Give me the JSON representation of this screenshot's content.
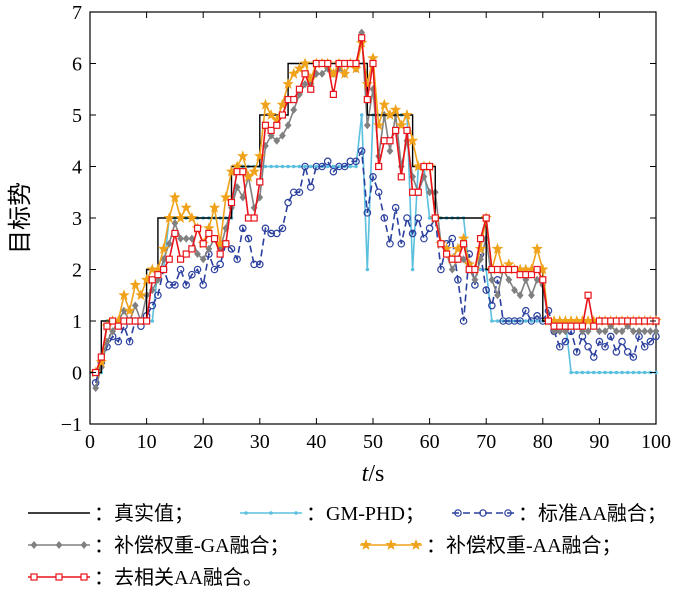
{
  "chart_data": {
    "type": "line",
    "title": "",
    "xlabel_italic": "t",
    "xlabel_unit": "/s",
    "ylabel": "目标势",
    "xlim": [
      0,
      100
    ],
    "ylim": [
      -1,
      7
    ],
    "xticks": [
      0,
      10,
      20,
      30,
      40,
      50,
      60,
      70,
      80,
      90,
      100
    ],
    "yticks": [
      -1,
      0,
      1,
      2,
      3,
      4,
      5,
      6,
      7
    ],
    "grid": false,
    "legend_placement": "bottom",
    "x": [
      1,
      2,
      3,
      4,
      5,
      6,
      7,
      8,
      9,
      10,
      11,
      12,
      13,
      14,
      15,
      16,
      17,
      18,
      19,
      20,
      21,
      22,
      23,
      24,
      25,
      26,
      27,
      28,
      29,
      30,
      31,
      32,
      33,
      34,
      35,
      36,
      37,
      38,
      39,
      40,
      41,
      42,
      43,
      44,
      45,
      46,
      47,
      48,
      49,
      50,
      51,
      52,
      53,
      54,
      55,
      56,
      57,
      58,
      59,
      60,
      61,
      62,
      63,
      64,
      65,
      66,
      67,
      68,
      69,
      70,
      71,
      72,
      73,
      74,
      75,
      76,
      77,
      78,
      79,
      80,
      81,
      82,
      83,
      84,
      85,
      86,
      87,
      88,
      89,
      90,
      91,
      92,
      93,
      94,
      95,
      96,
      97,
      98,
      99,
      100
    ],
    "series": [
      {
        "name": "：真实值；",
        "color": "#000000",
        "marker": "none",
        "dash": "none",
        "values": [
          0,
          0,
          1,
          1,
          1,
          1,
          1,
          1,
          1,
          1,
          2,
          2,
          3,
          3,
          3,
          3,
          3,
          3,
          3,
          3,
          3,
          3,
          3,
          3,
          3,
          4,
          4,
          4,
          4,
          4,
          5,
          5,
          5,
          5,
          5,
          6,
          6,
          6,
          6,
          6,
          6,
          6,
          6,
          6,
          6,
          6,
          6,
          6,
          6,
          5,
          5,
          5,
          5,
          5,
          5,
          5,
          5,
          4,
          4,
          4,
          4,
          3,
          3,
          3,
          3,
          3,
          3,
          3,
          3,
          3,
          2,
          2,
          2,
          2,
          2,
          2,
          2,
          2,
          2,
          2,
          1,
          1,
          1,
          1,
          1,
          1,
          1,
          1,
          1,
          1,
          1,
          1,
          1,
          1,
          1,
          1,
          1,
          1,
          1,
          1
        ]
      },
      {
        "name": "：GM-PHD；",
        "color": "#5bc0de",
        "marker": "dot",
        "dash": "none",
        "values": [
          0,
          0,
          1,
          1,
          1,
          1,
          1,
          1,
          1,
          1,
          1,
          2,
          2,
          3,
          3,
          3,
          3,
          3,
          3,
          3,
          3,
          3,
          3,
          3,
          3,
          4,
          4,
          4,
          4,
          4,
          4,
          4,
          4,
          4,
          4,
          4,
          4,
          4,
          4,
          4,
          4,
          4,
          4,
          4,
          4,
          4,
          4,
          5,
          2,
          5,
          5,
          5,
          5,
          5,
          5,
          5,
          2,
          4,
          4,
          3,
          3,
          3,
          3,
          3,
          3,
          3,
          2,
          2,
          2,
          2,
          1,
          1,
          1,
          1,
          1,
          1,
          1,
          1,
          1,
          1,
          1,
          1,
          1,
          1,
          0,
          0,
          0,
          0,
          0,
          0,
          0,
          0,
          0,
          0,
          0,
          0,
          0,
          0,
          0,
          0
        ]
      },
      {
        "name": "：标准AA融合；",
        "color": "#2b3f9e",
        "marker": "circle",
        "dash": "dashed",
        "values": [
          -0.2,
          0.2,
          0.5,
          0.7,
          0.6,
          0.9,
          0.6,
          1.0,
          0.9,
          1.1,
          1.3,
          1.5,
          2.0,
          1.7,
          1.7,
          2.0,
          1.7,
          1.9,
          2.0,
          1.7,
          2.3,
          2.0,
          2.1,
          2.5,
          2.4,
          2.2,
          2.8,
          2.6,
          2.1,
          2.1,
          2.8,
          2.7,
          2.7,
          2.8,
          3.3,
          3.5,
          3.5,
          4.0,
          3.6,
          4.0,
          4.0,
          4.1,
          3.9,
          4.0,
          4.0,
          4.1,
          4.1,
          4.3,
          3.1,
          3.8,
          3.5,
          3.0,
          2.5,
          3.2,
          2.5,
          3.0,
          2.7,
          3.0,
          2.6,
          2.8,
          3.0,
          2.0,
          2.5,
          2.6,
          1.8,
          1.0,
          2.3,
          1.7,
          2.3,
          1.6,
          1.3,
          1.8,
          1.0,
          1.0,
          1.0,
          1.0,
          1.2,
          1.0,
          1.1,
          1.0,
          1.2,
          0.8,
          0.5,
          0.6,
          0.8,
          0.4,
          0.7,
          0.5,
          0.3,
          0.6,
          0.5,
          0.7,
          0.4,
          0.6,
          0.4,
          0.3,
          0.7,
          0.5,
          0.6,
          0.7
        ]
      },
      {
        "name": "：补偿权重-GA融合；",
        "color": "#808080",
        "marker": "diamond",
        "dash": "none",
        "values": [
          -0.3,
          0.1,
          0.6,
          0.8,
          1.0,
          1.2,
          1.0,
          1.3,
          1.0,
          1.5,
          1.6,
          1.8,
          2.2,
          2.5,
          2.9,
          2.6,
          2.6,
          2.6,
          2.3,
          2.2,
          2.4,
          2.6,
          2.4,
          2.8,
          3.2,
          3.6,
          3.4,
          3.8,
          3.2,
          3.4,
          4.4,
          4.6,
          4.5,
          4.6,
          4.8,
          5.1,
          5.4,
          5.6,
          5.6,
          5.8,
          5.8,
          5.9,
          5.8,
          5.9,
          5.8,
          6.0,
          5.9,
          6.6,
          4.8,
          5.5,
          4.2,
          5.0,
          4.3,
          5.0,
          4.0,
          4.5,
          3.8,
          3.5,
          3.8,
          3.5,
          3.5,
          2.5,
          2.3,
          2.0,
          2.2,
          2.2,
          2.0,
          1.8,
          2.2,
          2.6,
          1.8,
          1.5,
          2.0,
          1.8,
          1.6,
          1.5,
          1.8,
          1.5,
          1.8,
          1.7,
          1.0,
          0.8,
          0.8,
          0.8,
          0.9,
          0.9,
          0.8,
          0.8,
          0.9,
          0.8,
          0.8,
          0.9,
          0.8,
          0.8,
          0.9,
          0.8,
          0.8,
          0.8,
          0.8,
          0.8
        ]
      },
      {
        "name": "：补偿权重-AA融合；",
        "color": "#f0a21a",
        "marker": "star",
        "dash": "none",
        "values": [
          0,
          0.2,
          0.9,
          1.0,
          1.0,
          1.5,
          1.2,
          1.7,
          1.5,
          1.8,
          2.0,
          2.0,
          2.4,
          3.0,
          3.4,
          3.0,
          3.2,
          3.0,
          2.8,
          2.5,
          2.8,
          3.2,
          2.5,
          3.4,
          3.9,
          4.0,
          4.2,
          3.8,
          3.9,
          4.2,
          5.2,
          5.0,
          4.9,
          5.2,
          5.6,
          5.8,
          5.9,
          6.0,
          5.7,
          6.0,
          6.0,
          6.0,
          5.8,
          6.0,
          5.8,
          6.0,
          5.9,
          6.4,
          5.6,
          6.1,
          4.8,
          5.2,
          5.0,
          5.1,
          4.8,
          5.0,
          4.5,
          4.0,
          4.0,
          4.0,
          3.0,
          2.5,
          2.4,
          2.2,
          2.4,
          2.6,
          2.1,
          2.0,
          2.4,
          3.0,
          2.0,
          2.4,
          2.0,
          2.1,
          2.0,
          2.0,
          2.0,
          2.0,
          2.4,
          2.0,
          1.0,
          1.0,
          1.0,
          1.0,
          1.0,
          1.0,
          1.0,
          1.0,
          1.0,
          1.0,
          1.0,
          1.0,
          1.0,
          1.0,
          1.0,
          1.0,
          1.0,
          1.0,
          1.0,
          1.0
        ]
      },
      {
        "name": "：去相关AA融合。",
        "color": "#e8131b",
        "marker": "square",
        "dash": "none",
        "values": [
          0,
          0.3,
          0.9,
          1.0,
          0.9,
          1.0,
          1.0,
          1.0,
          1.0,
          1.0,
          1.8,
          1.9,
          2.0,
          2.2,
          2.7,
          2.2,
          2.3,
          2.4,
          2.8,
          2.5,
          2.7,
          2.6,
          2.3,
          2.5,
          3.3,
          3.9,
          3.9,
          3.0,
          3.0,
          3.7,
          4.8,
          4.7,
          4.8,
          5.0,
          5.3,
          5.3,
          5.5,
          5.8,
          5.5,
          6.0,
          6.0,
          6.0,
          5.4,
          6.0,
          6.0,
          6.0,
          6.0,
          6.5,
          5.3,
          6.0,
          4.0,
          4.5,
          4.5,
          4.7,
          3.8,
          4.7,
          3.5,
          3.5,
          4.0,
          4.0,
          3.0,
          2.5,
          2.3,
          2.2,
          2.2,
          2.5,
          2.0,
          2.0,
          2.6,
          3.0,
          2.0,
          2.0,
          2.0,
          2.0,
          2.0,
          1.9,
          1.9,
          1.9,
          2.0,
          1.8,
          1.0,
          0.9,
          0.9,
          0.9,
          0.9,
          0.9,
          0.9,
          1.5,
          0.9,
          1.0,
          1.0,
          1.0,
          1.0,
          1.0,
          1.0,
          1.0,
          1.0,
          1.0,
          1.0,
          1.0
        ]
      }
    ]
  }
}
